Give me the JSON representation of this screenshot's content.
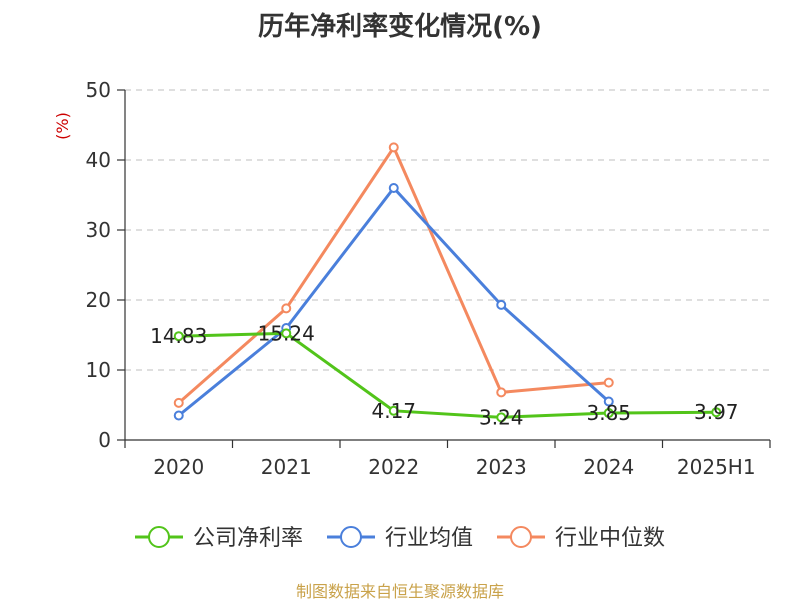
{
  "chart_data": {
    "type": "line",
    "title": "历年净利率变化情况(%)",
    "ylabel": "(%)",
    "ylim": [
      0,
      50
    ],
    "yticks": [
      0,
      10,
      20,
      30,
      40,
      50
    ],
    "categories": [
      "2020",
      "2021",
      "2022",
      "2023",
      "2024",
      "2025H1"
    ],
    "grid": true,
    "legend_position": "bottom",
    "series": [
      {
        "name": "公司净利率",
        "color": "#52c41a",
        "values": [
          14.83,
          15.24,
          4.17,
          3.24,
          3.85,
          3.97
        ],
        "labels": [
          "14.83",
          "15.24",
          "4.17",
          "3.24",
          "3.85",
          "3.97"
        ]
      },
      {
        "name": "行业均值",
        "color": "#4a7fdb",
        "values": [
          3.5,
          16.0,
          36.0,
          19.3,
          5.5,
          null
        ]
      },
      {
        "name": "行业中位数",
        "color": "#f4895f",
        "values": [
          5.3,
          18.8,
          41.8,
          6.8,
          8.2,
          null
        ]
      }
    ]
  },
  "source_note": "制图数据来自恒生聚源数据库"
}
